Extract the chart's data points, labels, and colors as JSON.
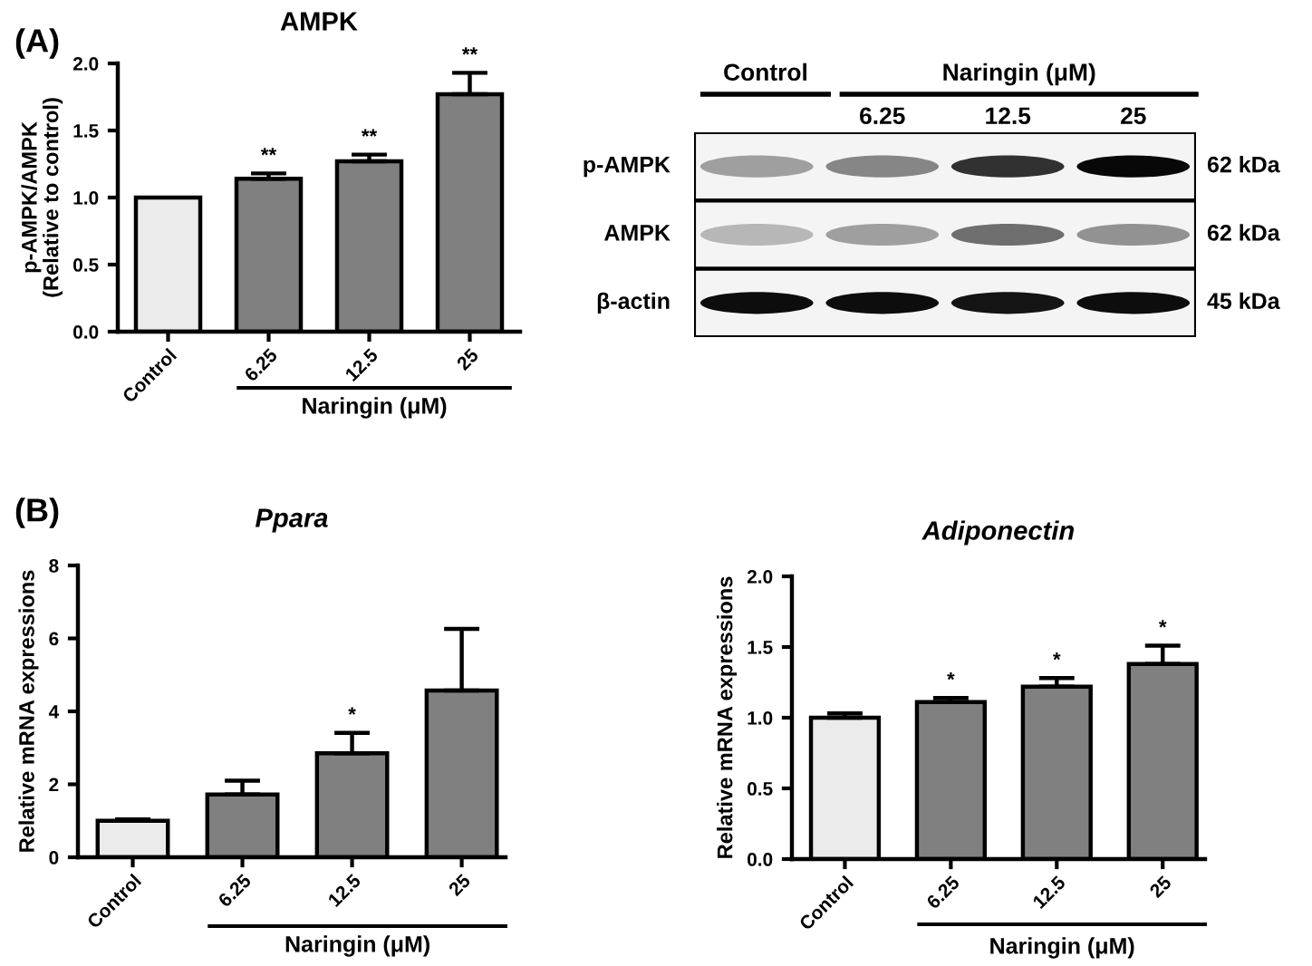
{
  "chart_data": [
    {
      "type": "bar",
      "title": "AMPK",
      "ylabel": "p-AMPK/AMPK\n(Relative to control)",
      "xlabel": "Naringin (μM)",
      "categories": [
        "Control",
        "6.25",
        "12.5",
        "25"
      ],
      "values": [
        1.0,
        1.14,
        1.27,
        1.77
      ],
      "colors": [
        "#ebebeb",
        "#808080",
        "#808080",
        "#808080"
      ],
      "errors": [
        null,
        [
          1.14,
          1.18
        ],
        [
          1.27,
          1.32
        ],
        [
          1.77,
          1.93
        ]
      ],
      "ylim": [
        0,
        2
      ],
      "yticks": [
        {
          "value": 0,
          "label": "0.0"
        },
        {
          "value": 0.5,
          "label": "0.5"
        },
        {
          "value": 1,
          "label": "1.0"
        },
        {
          "value": 1.5,
          "label": "1.5"
        },
        {
          "value": 2,
          "label": "2.0"
        }
      ],
      "annotations": [
        "(A)",
        {
          "text": "**",
          "x": "6.25",
          "y": 1.18
        },
        {
          "text": "**",
          "x": "12.5",
          "y": 1.32
        },
        {
          "text": "**",
          "x": "25",
          "y": 1.93
        }
      ]
    },
    {
      "type": "other",
      "categories": [
        null,
        "6.25",
        "12.5",
        "25"
      ],
      "y_categories": [
        "p-AMPK",
        "AMPK",
        "β-actin"
      ],
      "y2_categories": [
        "62 kDa",
        "62 kDa",
        "45 kDa"
      ],
      "annotations": [
        "Control",
        "Naringin (μM)"
      ]
    },
    {
      "type": "bar",
      "title": "Ppara",
      "ylabel": "Relative mRNA expressions",
      "xlabel": "Naringin (μM)",
      "categories": [
        "Control",
        "6.25",
        "12.5",
        "25"
      ],
      "values": [
        1.0,
        1.72,
        2.85,
        4.57
      ],
      "colors": [
        "#ebebeb",
        "#808080",
        "#808080",
        "#808080"
      ],
      "errors": [
        [
          1.0,
          1.04
        ],
        [
          1.72,
          2.1
        ],
        [
          2.85,
          3.41
        ],
        [
          4.57,
          6.26
        ]
      ],
      "ylim": [
        0,
        8
      ],
      "yticks": [
        0,
        2,
        4,
        6,
        8
      ],
      "annotations": [
        "(B)",
        {
          "text": "*",
          "x": "12.5",
          "y": 3.41
        }
      ]
    },
    {
      "type": "bar",
      "title": "Adiponectin",
      "ylabel": "Relative mRNA expressions",
      "xlabel": "Naringin (μM)",
      "categories": [
        "Control",
        "6.25",
        "12.5",
        "25"
      ],
      "values": [
        1.0,
        1.11,
        1.22,
        1.38
      ],
      "colors": [
        "#ebebeb",
        "#808080",
        "#808080",
        "#808080"
      ],
      "errors": [
        [
          1.0,
          1.03
        ],
        [
          1.11,
          1.14
        ],
        [
          1.22,
          1.28
        ],
        [
          1.38,
          1.51
        ]
      ],
      "ylim": [
        0,
        2
      ],
      "yticks": [
        {
          "value": 0,
          "label": "0.0"
        },
        {
          "value": 0.5,
          "label": "0.5"
        },
        {
          "value": 1,
          "label": "1.0"
        },
        {
          "value": 1.5,
          "label": "1.5"
        },
        {
          "value": 2,
          "label": "2.0"
        }
      ],
      "annotations": [
        {
          "text": "*",
          "x": "6.25",
          "y": 1.14
        },
        {
          "text": "*",
          "x": "12.5",
          "y": 1.28
        },
        {
          "text": "*",
          "x": "25",
          "y": 1.51
        }
      ]
    }
  ]
}
